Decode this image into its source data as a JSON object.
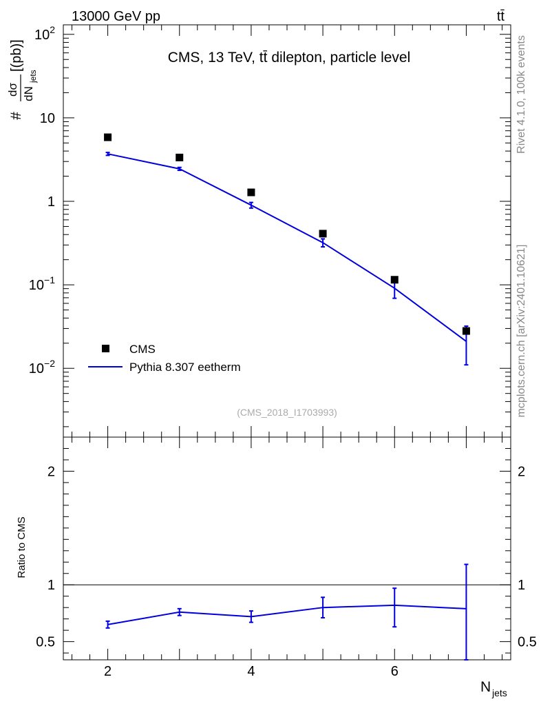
{
  "header": {
    "left": "13000 GeV pp",
    "right": "tt̄"
  },
  "side_text": {
    "top": "Rivet 4.1.0,  100k events",
    "bottom": "mcplots.cern.ch [arXiv:2401.10621]"
  },
  "chart_data": [
    {
      "type": "scatter",
      "panel": "main",
      "title": "CMS, 13 TeV, tt̄ dilepton, particle level",
      "watermark": "(CMS_2018_I1703993)",
      "ylabel": {
        "prefix": "#",
        "num": "dσ",
        "den": "dN",
        "den_sub": "jets",
        "unit": "[(pb)]"
      },
      "yscale": "log",
      "xlim": [
        1.38,
        7.62
      ],
      "ylim": [
        0.0015,
        130
      ],
      "yticks": [
        {
          "value": 100,
          "base": "10",
          "exp": "2"
        },
        {
          "value": 10,
          "base": "10",
          "exp": ""
        },
        {
          "value": 1,
          "base": "1",
          "exp": ""
        },
        {
          "value": 0.1,
          "base": "10",
          "exp": "−1"
        },
        {
          "value": 0.01,
          "base": "10",
          "exp": "−2"
        }
      ],
      "legend": {
        "position": "bottom-left",
        "entries": [
          "CMS",
          "Pythia 8.307 eetherm"
        ]
      },
      "series": [
        {
          "name": "CMS",
          "style": "markers",
          "color": "#000000",
          "x": [
            2,
            3,
            4,
            5,
            6,
            7
          ],
          "y": [
            5.85,
            3.35,
            1.28,
            0.41,
            0.115,
            0.028
          ]
        },
        {
          "name": "Pythia 8.307 eetherm",
          "style": "line",
          "color": "#0000dd",
          "x": [
            2,
            3,
            4,
            5,
            6,
            7
          ],
          "y": [
            3.7,
            2.45,
            0.9,
            0.32,
            0.091,
            0.021
          ],
          "err_low": [
            3.55,
            2.35,
            0.83,
            0.285,
            0.069,
            0.011
          ],
          "err_high": [
            3.85,
            2.55,
            0.97,
            0.355,
            0.113,
            0.032
          ]
        }
      ]
    },
    {
      "type": "line",
      "panel": "ratio",
      "ylabel": "Ratio to CMS",
      "xlabel": "N",
      "xlabel_sub": "jets",
      "xlim": [
        1.38,
        7.62
      ],
      "ylim": [
        0.34,
        2.3
      ],
      "xticks": [
        "2",
        "4",
        "6"
      ],
      "xtick_values": [
        2,
        4,
        6
      ],
      "yticks": [
        "0.5",
        "1",
        "2"
      ],
      "ytick_values": [
        0.5,
        1,
        2
      ],
      "reference_line": 1,
      "series": [
        {
          "name": "Pythia 8.307 eetherm",
          "color": "#0000dd",
          "x": [
            2,
            3,
            4,
            5,
            6,
            7
          ],
          "y": [
            0.65,
            0.76,
            0.72,
            0.8,
            0.82,
            0.79
          ],
          "err_low": [
            0.62,
            0.73,
            0.67,
            0.71,
            0.63,
            0.34
          ],
          "err_high": [
            0.68,
            0.79,
            0.77,
            0.89,
            0.97,
            1.18
          ]
        }
      ]
    }
  ]
}
